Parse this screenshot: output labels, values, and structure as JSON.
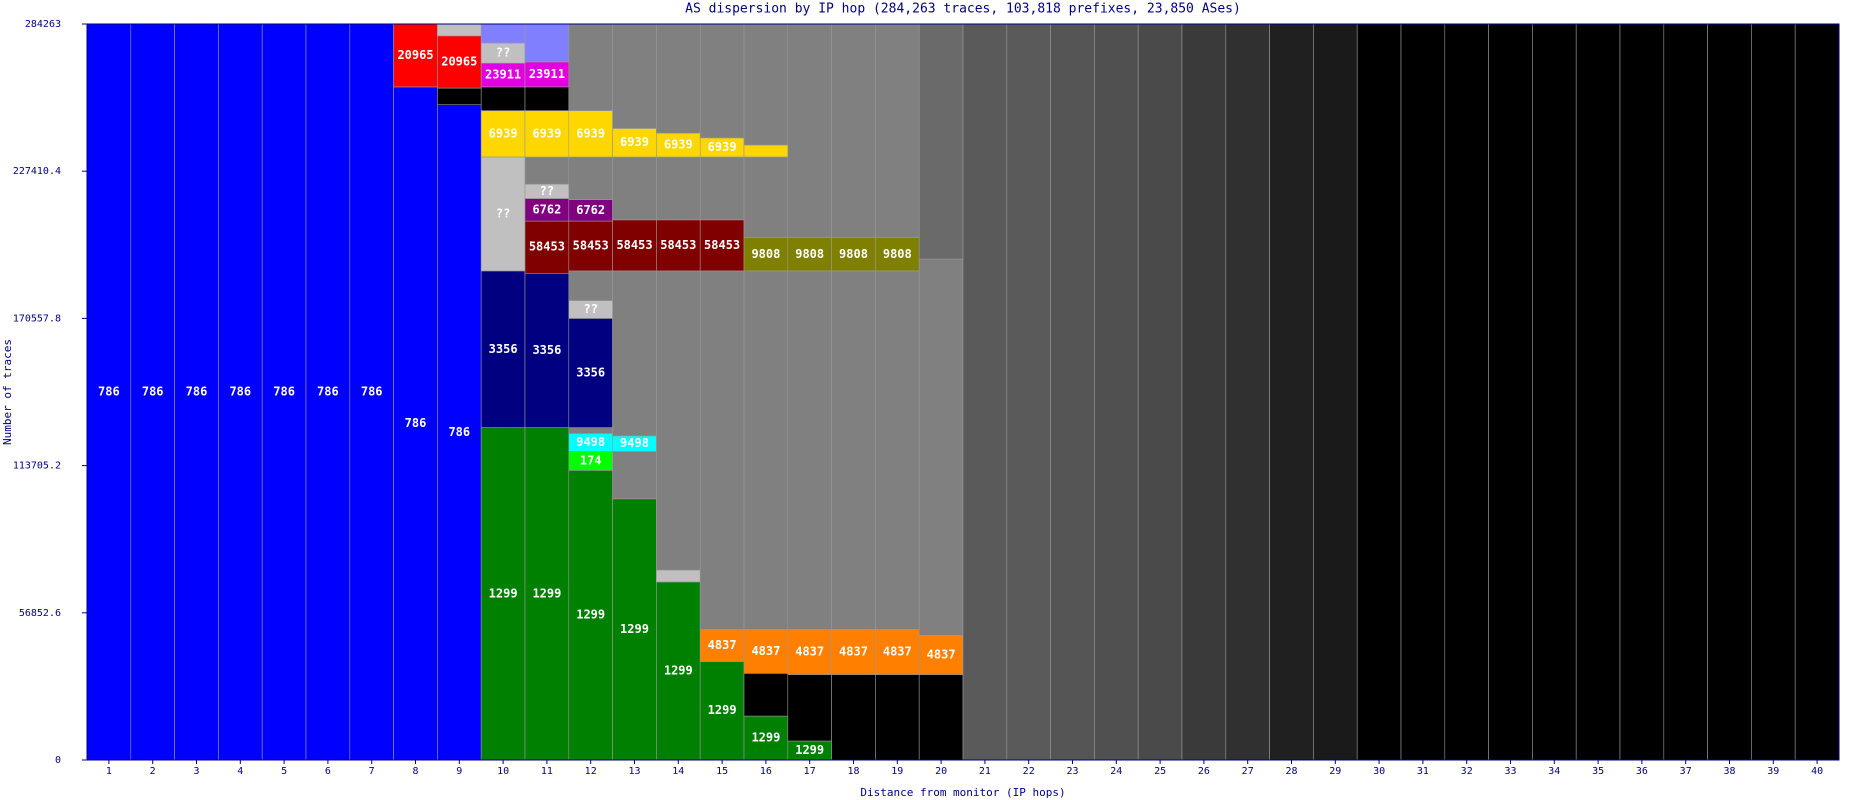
{
  "chart_data": {
    "type": "stacked_bar",
    "title": "AS dispersion by IP hop (284,263 traces, 103,818 prefixes, 23,850 ASes)",
    "x_label": "Distance from monitor (IP hops)",
    "y_label": "Number of traces",
    "ylim": [
      0,
      284263
    ],
    "yticks": [
      0,
      56852.6,
      113705.2,
      170557.8,
      227410.4,
      284263
    ],
    "categories": [
      "1",
      "2",
      "3",
      "4",
      "5",
      "6",
      "7",
      "8",
      "9",
      "10",
      "11",
      "12",
      "13",
      "14",
      "15",
      "16",
      "17",
      "18",
      "19",
      "20",
      "21",
      "22",
      "23",
      "24",
      "25",
      "26",
      "27",
      "28",
      "29",
      "30",
      "31",
      "32",
      "33",
      "34",
      "35",
      "36",
      "37",
      "38",
      "39",
      "40"
    ],
    "bars": [
      {
        "segments": [
          {
            "value": 284263,
            "color": "#0000ff",
            "label": "786"
          }
        ]
      },
      {
        "segments": [
          {
            "value": 284263,
            "color": "#0000ff",
            "label": "786"
          }
        ]
      },
      {
        "segments": [
          {
            "value": 284263,
            "color": "#0000ff",
            "label": "786"
          }
        ]
      },
      {
        "segments": [
          {
            "value": 284263,
            "color": "#0000ff",
            "label": "786"
          }
        ]
      },
      {
        "segments": [
          {
            "value": 284263,
            "color": "#0000ff",
            "label": "786"
          }
        ]
      },
      {
        "segments": [
          {
            "value": 284263,
            "color": "#0000ff",
            "label": "786"
          }
        ]
      },
      {
        "segments": [
          {
            "value": 284263,
            "color": "#0000ff",
            "label": "786"
          }
        ]
      },
      {
        "segments": [
          {
            "value": 259963,
            "color": "#0000ff",
            "label": "786"
          },
          {
            "value": 24300,
            "color": "#ff0000",
            "label": "20965"
          }
        ]
      },
      {
        "segments": [
          {
            "value": 253090,
            "color": "#0000ff",
            "label": "786"
          },
          {
            "value": 6419,
            "color": "#000000"
          },
          {
            "value": 20174,
            "color": "#ff0000",
            "label": "20965"
          },
          {
            "value": 4580,
            "color": "#c0c0c0"
          }
        ]
      },
      {
        "segments": [
          {
            "value": 128380,
            "color": "#008000",
            "label": "1299"
          },
          {
            "value": 60520,
            "color": "#000080",
            "label": "3356"
          },
          {
            "value": 44015,
            "color": "#c0c0c0",
            "label": "??"
          },
          {
            "value": 17880,
            "color": "#ffd700",
            "label": "6939"
          },
          {
            "value": 9170,
            "color": "#000000"
          },
          {
            "value": 9170,
            "color": "#e000e0",
            "label": "23911"
          },
          {
            "value": 7794,
            "color": "#c0c0c0",
            "label": "??"
          },
          {
            "value": 7334,
            "color": "#8080ff"
          }
        ]
      },
      {
        "segments": [
          {
            "value": 128380,
            "color": "#008000",
            "label": "1299"
          },
          {
            "value": 59605,
            "color": "#000080",
            "label": "3356"
          },
          {
            "value": 20174,
            "color": "#800000",
            "label": "58453"
          },
          {
            "value": 8711,
            "color": "#800080",
            "label": "6762"
          },
          {
            "value": 5502,
            "color": "#c0c0c0",
            "label": "??"
          },
          {
            "value": 10546,
            "color": "#808080"
          },
          {
            "value": 17881,
            "color": "#ffd700",
            "label": "6939"
          },
          {
            "value": 9170,
            "color": "#000000"
          },
          {
            "value": 9628,
            "color": "#e000e0",
            "label": "23911"
          },
          {
            "value": 14666,
            "color": "#8080ff"
          }
        ]
      },
      {
        "segments": [
          {
            "value": 111874,
            "color": "#008000",
            "label": "1299"
          },
          {
            "value": 7336,
            "color": "#00ff00",
            "label": "174"
          },
          {
            "value": 6877,
            "color": "#00ffff",
            "label": "9498"
          },
          {
            "value": 2292,
            "color": "#808080"
          },
          {
            "value": 42182,
            "color": "#000080",
            "label": "3356"
          },
          {
            "value": 6877,
            "color": "#c0c0c0",
            "label": "??"
          },
          {
            "value": 11463,
            "color": "#808080"
          },
          {
            "value": 19257,
            "color": "#800000",
            "label": "58453"
          },
          {
            "value": 8253,
            "color": "#800080",
            "label": "6762"
          },
          {
            "value": 16506,
            "color": "#808080"
          },
          {
            "value": 17881,
            "color": "#ffd700",
            "label": "6939"
          },
          {
            "value": 33465,
            "color": "#808080"
          }
        ]
      },
      {
        "segments": [
          {
            "value": 100870,
            "color": "#008000",
            "label": "1299"
          },
          {
            "value": 18340,
            "color": "#808080"
          },
          {
            "value": 5960,
            "color": "#00ffff",
            "label": "9498"
          },
          {
            "value": 63732,
            "color": "#808080"
          },
          {
            "value": 19716,
            "color": "#800000",
            "label": "58453"
          },
          {
            "value": 24300,
            "color": "#808080"
          },
          {
            "value": 11004,
            "color": "#ffd700",
            "label": "6939"
          },
          {
            "value": 40341,
            "color": "#808080"
          }
        ]
      },
      {
        "segments": [
          {
            "value": 68775,
            "color": "#008000",
            "label": "1299"
          },
          {
            "value": 4585,
            "color": "#c0c0c0"
          },
          {
            "value": 115542,
            "color": "#808080"
          },
          {
            "value": 19716,
            "color": "#800000",
            "label": "58453"
          },
          {
            "value": 24300,
            "color": "#808080"
          },
          {
            "value": 9170,
            "color": "#ffd700",
            "label": "6939"
          },
          {
            "value": 42175,
            "color": "#808080"
          }
        ]
      },
      {
        "segments": [
          {
            "value": 38056,
            "color": "#008000",
            "label": "1299"
          },
          {
            "value": 12380,
            "color": "#ff8000",
            "label": "4837"
          },
          {
            "value": 138469,
            "color": "#808080"
          },
          {
            "value": 19716,
            "color": "#800000",
            "label": "58453"
          },
          {
            "value": 24300,
            "color": "#808080"
          },
          {
            "value": 7336,
            "color": "#ffd700",
            "label": "6939"
          },
          {
            "value": 44006,
            "color": "#808080"
          }
        ]
      },
      {
        "segments": [
          {
            "value": 16965,
            "color": "#008000",
            "label": "1299"
          },
          {
            "value": 16506,
            "color": "#000000"
          },
          {
            "value": 16965,
            "color": "#ff8000",
            "label": "4837"
          },
          {
            "value": 138469,
            "color": "#808080"
          },
          {
            "value": 12838,
            "color": "#808000",
            "label": "9808"
          },
          {
            "value": 31178,
            "color": "#808080"
          },
          {
            "value": 4585,
            "color": "#ffd700"
          },
          {
            "value": 46757,
            "color": "#808080"
          }
        ]
      },
      {
        "segments": [
          {
            "value": 7336,
            "color": "#008000",
            "label": "1299"
          },
          {
            "value": 25676,
            "color": "#000000"
          },
          {
            "value": 17424,
            "color": "#ff8000",
            "label": "4837"
          },
          {
            "value": 138469,
            "color": "#808080"
          },
          {
            "value": 12838,
            "color": "#808000",
            "label": "9808"
          },
          {
            "value": 82520,
            "color": "#808080"
          }
        ]
      },
      {
        "segments": [
          {
            "value": 33012,
            "color": "#000000"
          },
          {
            "value": 17424,
            "color": "#ff8000",
            "label": "4837"
          },
          {
            "value": 138469,
            "color": "#808080"
          },
          {
            "value": 12838,
            "color": "#808000",
            "label": "9808"
          },
          {
            "value": 82520,
            "color": "#808080"
          }
        ]
      },
      {
        "segments": [
          {
            "value": 33012,
            "color": "#000000"
          },
          {
            "value": 17424,
            "color": "#ff8000",
            "label": "4837"
          },
          {
            "value": 138469,
            "color": "#808080"
          },
          {
            "value": 12838,
            "color": "#808000",
            "label": "9808"
          },
          {
            "value": 82520,
            "color": "#808080"
          }
        ]
      },
      {
        "segments": [
          {
            "value": 33012,
            "color": "#000000"
          },
          {
            "value": 15130,
            "color": "#ff8000",
            "label": "4837"
          },
          {
            "value": 145344,
            "color": "#808080"
          },
          {
            "value": 90777,
            "color": "#6a6a6a"
          }
        ]
      },
      {
        "segments": [
          {
            "value": 284263,
            "color": "#5a5a5a"
          }
        ]
      },
      {
        "segments": [
          {
            "value": 284263,
            "color": "#5a5a5a"
          }
        ]
      },
      {
        "segments": [
          {
            "value": 284263,
            "color": "#555555"
          }
        ]
      },
      {
        "segments": [
          {
            "value": 284263,
            "color": "#505050"
          }
        ]
      },
      {
        "segments": [
          {
            "value": 284263,
            "color": "#4a4a4a"
          }
        ]
      },
      {
        "segments": [
          {
            "value": 284263,
            "color": "#3a3a3a"
          }
        ]
      },
      {
        "segments": [
          {
            "value": 284263,
            "color": "#303030"
          }
        ]
      },
      {
        "segments": [
          {
            "value": 284263,
            "color": "#202020"
          }
        ]
      },
      {
        "segments": [
          {
            "value": 284263,
            "color": "#1a1a1a"
          }
        ]
      },
      {
        "segments": [
          {
            "value": 284263,
            "color": "#000000"
          }
        ]
      },
      {
        "segments": [
          {
            "value": 284263,
            "color": "#000000"
          }
        ]
      },
      {
        "segments": [
          {
            "value": 284263,
            "color": "#000000"
          }
        ]
      },
      {
        "segments": [
          {
            "value": 284263,
            "color": "#000000"
          }
        ]
      },
      {
        "segments": [
          {
            "value": 284263,
            "color": "#000000"
          }
        ]
      },
      {
        "segments": [
          {
            "value": 284263,
            "color": "#000000"
          }
        ]
      },
      {
        "segments": [
          {
            "value": 284263,
            "color": "#000000"
          }
        ]
      },
      {
        "segments": [
          {
            "value": 284263,
            "color": "#000000"
          }
        ]
      },
      {
        "segments": [
          {
            "value": 284263,
            "color": "#000000"
          }
        ]
      },
      {
        "segments": [
          {
            "value": 284263,
            "color": "#000000"
          }
        ]
      },
      {
        "segments": [
          {
            "value": 284263,
            "color": "#000000"
          }
        ]
      }
    ]
  }
}
